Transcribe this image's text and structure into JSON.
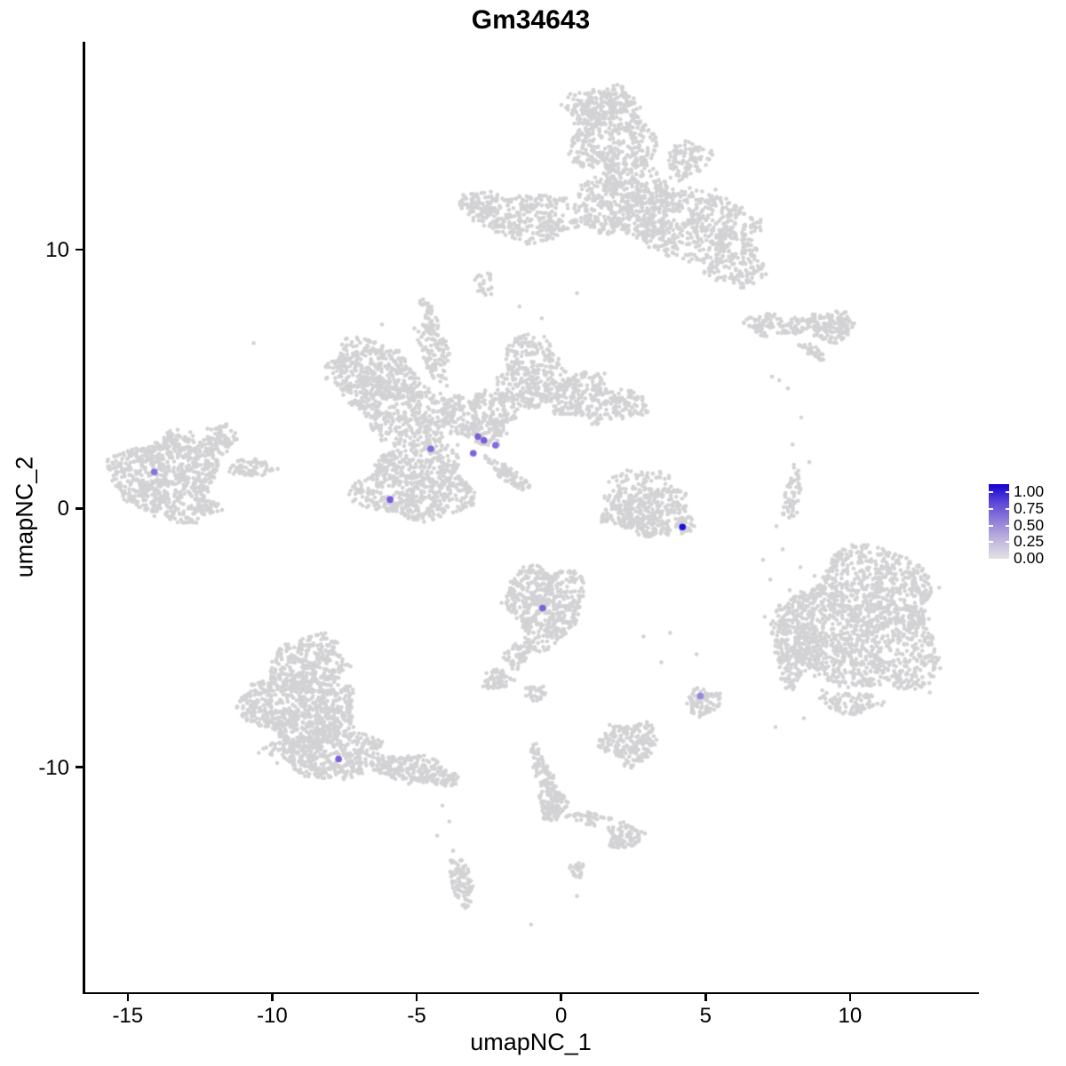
{
  "title": "Gm34643",
  "axes": {
    "x": {
      "label": "umapNC_1",
      "ticks": [
        -15,
        -10,
        -5,
        0,
        5,
        10
      ]
    },
    "y": {
      "label": "umapNC_2",
      "ticks": [
        10,
        0,
        -10
      ]
    }
  },
  "chart_data": {
    "type": "scatter",
    "title": "Gm34643",
    "xlabel": "umapNC_1",
    "ylabel": "umapNC_2",
    "xlim": [
      -16.5,
      14.4
    ],
    "ylim": [
      -18.7,
      18.0
    ],
    "grid": false,
    "point_color": "#D3D3D5",
    "point_radius": 2.3,
    "highlight_radius": 3.8,
    "colorbar": {
      "position": "right",
      "breaks": [
        1.0,
        0.75,
        0.5,
        0.25,
        0.0
      ],
      "labels": [
        "1.00",
        "0.75",
        "0.50",
        "0.25",
        "0.00"
      ],
      "high": "#1302D1",
      "low": "#E2E2E2",
      "gradient": [
        "#1302D1",
        "#5D48D8",
        "#9280DA",
        "#C0B6DE",
        "#E2E2E2"
      ]
    },
    "clusters": [
      {
        "id": "top-stalk-upper",
        "c": [
          1.78,
          14.5
        ],
        "r": [
          1.38,
          1.72
        ],
        "rot": 8,
        "n": 420
      },
      {
        "id": "top-stalk-cap",
        "c": [
          1.23,
          15.46
        ],
        "r": [
          1.17,
          0.76
        ],
        "rot": 0,
        "n": 140
      },
      {
        "id": "top-stalk-lower",
        "c": [
          2.27,
          11.92
        ],
        "r": [
          1.6,
          1.55
        ],
        "rot": 0,
        "n": 480
      },
      {
        "id": "top-band-left",
        "c": [
          -1.1,
          11.31
        ],
        "r": [
          1.99,
          0.93
        ],
        "rot": -5,
        "n": 330
      },
      {
        "id": "top-band-left-tip",
        "c": [
          -2.94,
          11.72
        ],
        "r": [
          0.67,
          0.48
        ],
        "rot": 0,
        "n": 70
      },
      {
        "id": "top-band-right",
        "c": [
          4.48,
          11.0
        ],
        "r": [
          2.21,
          1.37
        ],
        "rot": -12,
        "n": 520
      },
      {
        "id": "top-right-wing",
        "c": [
          6.07,
          9.42
        ],
        "r": [
          0.98,
          0.89
        ],
        "rot": 0,
        "n": 150
      },
      {
        "id": "top-right-spur",
        "c": [
          4.39,
          13.47
        ],
        "r": [
          0.8,
          0.69
        ],
        "rot": 40,
        "n": 110
      },
      {
        "id": "top-under-sparse",
        "c": [
          -2.67,
          8.73
        ],
        "r": [
          0.37,
          0.48
        ],
        "rot": 0,
        "n": 22
      },
      {
        "id": "righttop-arm",
        "c": [
          7.55,
          7.08
        ],
        "r": [
          1.23,
          0.41
        ],
        "rot": -3,
        "n": 110
      },
      {
        "id": "righttop-head",
        "c": [
          9.36,
          7.04
        ],
        "r": [
          0.8,
          0.62
        ],
        "rot": 0,
        "n": 140
      },
      {
        "id": "righttop-dash",
        "c": [
          8.71,
          6.05
        ],
        "r": [
          0.49,
          0.21
        ],
        "rot": -35,
        "n": 35
      },
      {
        "id": "butterfly-left-wing-top",
        "c": [
          -6.5,
          5.29
        ],
        "r": [
          1.69,
          1.1
        ],
        "rot": -18,
        "n": 380
      },
      {
        "id": "butterfly-left-wing",
        "c": [
          -5.52,
          3.75
        ],
        "r": [
          1.9,
          1.17
        ],
        "rot": -22,
        "n": 420
      },
      {
        "id": "butterfly-lower-body",
        "c": [
          -5.03,
          0.93
        ],
        "r": [
          1.99,
          1.44
        ],
        "rot": 0,
        "n": 650
      },
      {
        "id": "butterfly-center",
        "c": [
          -2.82,
          3.57
        ],
        "r": [
          1.29,
          1.03
        ],
        "rot": 0,
        "n": 300
      },
      {
        "id": "butterfly-stalk",
        "c": [
          -4.42,
          6.08
        ],
        "r": [
          0.49,
          1.2
        ],
        "rot": 15,
        "n": 110
      },
      {
        "id": "butterfly-strand",
        "c": [
          -4.57,
          7.35
        ],
        "r": [
          0.25,
          0.76
        ],
        "rot": 15,
        "n": 40
      },
      {
        "id": "butterfly-right-lobe",
        "c": [
          -1.04,
          5.22
        ],
        "r": [
          1.17,
          1.44
        ],
        "rot": 0,
        "n": 340
      },
      {
        "id": "butterfly-right-arm",
        "c": [
          0.74,
          4.26
        ],
        "r": [
          1.29,
          0.89
        ],
        "rot": -10,
        "n": 240
      },
      {
        "id": "butterfly-arm-tip",
        "c": [
          2.33,
          4.02
        ],
        "r": [
          0.61,
          0.55
        ],
        "rot": 0,
        "n": 70
      },
      {
        "id": "butterfly-tail",
        "c": [
          -1.84,
          1.31
        ],
        "r": [
          0.92,
          0.27
        ],
        "rot": -40,
        "n": 80
      },
      {
        "id": "fish-body",
        "c": [
          -13.65,
          1.24
        ],
        "r": [
          1.84,
          1.65
        ],
        "rot": 0,
        "n": 750
      },
      {
        "id": "fish-fin",
        "c": [
          -11.81,
          2.68
        ],
        "r": [
          0.61,
          0.55
        ],
        "rot": 45,
        "n": 80
      },
      {
        "id": "fish-tail",
        "c": [
          -10.74,
          1.55
        ],
        "r": [
          0.8,
          0.34
        ],
        "rot": 0,
        "n": 70
      },
      {
        "id": "fish-wisp",
        "c": [
          -12.27,
          0.03
        ],
        "r": [
          0.49,
          0.31
        ],
        "rot": 0,
        "n": 35
      },
      {
        "id": "midright-main",
        "c": [
          3.16,
          -0.17
        ],
        "r": [
          1.47,
          0.96
        ],
        "rot": 0,
        "n": 380
      },
      {
        "id": "midright-top-sparse",
        "c": [
          2.79,
          1.1
        ],
        "r": [
          1.1,
          0.55
        ],
        "rot": 0,
        "n": 55
      },
      {
        "id": "midright-left-bit",
        "c": [
          1.84,
          0.41
        ],
        "r": [
          0.31,
          0.34
        ],
        "rot": 0,
        "n": 22
      },
      {
        "id": "center-low-round",
        "c": [
          -0.55,
          -3.71
        ],
        "r": [
          1.29,
          1.58
        ],
        "rot": 0,
        "n": 520
      },
      {
        "id": "center-low-spur",
        "c": [
          -1.5,
          -5.67
        ],
        "r": [
          0.55,
          0.41
        ],
        "rot": 45,
        "n": 60
      },
      {
        "id": "center-low-blob",
        "c": [
          -2.21,
          -6.6
        ],
        "r": [
          0.49,
          0.41
        ],
        "rot": 0,
        "n": 60
      },
      {
        "id": "center-low-small",
        "c": [
          -0.86,
          -7.11
        ],
        "r": [
          0.37,
          0.31
        ],
        "rot": 0,
        "n": 30
      },
      {
        "id": "right-kidney",
        "c": [
          10.46,
          -4.4
        ],
        "r": [
          2.7,
          2.75
        ],
        "rot": 0,
        "n": 1500
      },
      {
        "id": "kidney-left-lobe",
        "c": [
          8.1,
          -5.36
        ],
        "r": [
          0.74,
          1.44
        ],
        "rot": 0,
        "n": 220
      },
      {
        "id": "kidney-bottom",
        "c": [
          10.0,
          -7.49
        ],
        "r": [
          1.1,
          0.41
        ],
        "rot": 0,
        "n": 90
      },
      {
        "id": "kidney-wisp",
        "c": [
          8.01,
          0.48
        ],
        "r": [
          0.28,
          1.13
        ],
        "rot": -8,
        "n": 60
      },
      {
        "id": "small-island",
        "c": [
          4.91,
          -7.49
        ],
        "r": [
          0.55,
          0.52
        ],
        "rot": 0,
        "n": 90
      },
      {
        "id": "lower-mid-island",
        "c": [
          2.36,
          -9.07
        ],
        "r": [
          0.98,
          0.82
        ],
        "rot": 0,
        "n": 190
      },
      {
        "id": "bottomleft-top",
        "c": [
          -8.68,
          -5.91
        ],
        "r": [
          1.35,
          0.96
        ],
        "rot": 0,
        "n": 280
      },
      {
        "id": "bottomleft-main",
        "c": [
          -9.02,
          -7.77
        ],
        "r": [
          2.02,
          1.37
        ],
        "rot": -8,
        "n": 750
      },
      {
        "id": "bottomleft-lower",
        "c": [
          -8.1,
          -9.48
        ],
        "r": [
          1.84,
          0.96
        ],
        "rot": 0,
        "n": 420
      },
      {
        "id": "bottomleft-tail",
        "c": [
          -5.34,
          -10.03
        ],
        "r": [
          1.29,
          0.55
        ],
        "rot": -8,
        "n": 200
      },
      {
        "id": "bottomleft-tail-tip",
        "c": [
          -3.99,
          -10.45
        ],
        "r": [
          0.49,
          0.31
        ],
        "rot": 0,
        "n": 50
      },
      {
        "id": "seahorse-strand",
        "c": [
          -0.64,
          -10.1
        ],
        "r": [
          1.0,
          0.28
        ],
        "rot": -70,
        "n": 80
      },
      {
        "id": "seahorse-body",
        "c": [
          -0.31,
          -11.44
        ],
        "r": [
          0.46,
          0.62
        ],
        "rot": 0,
        "n": 110
      },
      {
        "id": "seahorse-arm",
        "c": [
          0.98,
          -11.99
        ],
        "r": [
          0.8,
          0.24
        ],
        "rot": -10,
        "n": 45
      },
      {
        "id": "seahorse-head",
        "c": [
          2.21,
          -12.65
        ],
        "r": [
          0.58,
          0.48
        ],
        "rot": 0,
        "n": 90
      },
      {
        "id": "seahorse-drop",
        "c": [
          0.55,
          -13.99
        ],
        "r": [
          0.25,
          0.34
        ],
        "rot": 0,
        "n": 25
      },
      {
        "id": "bottom-strip",
        "c": [
          -3.47,
          -14.4
        ],
        "r": [
          0.37,
          0.93
        ],
        "rot": 12,
        "n": 90
      }
    ],
    "singles": [
      [
        -10.64,
        6.39
      ],
      [
        7.55,
        4.95
      ],
      [
        7.85,
        4.64
      ],
      [
        7.3,
        5.09
      ],
      [
        7.45,
        -0.69
      ],
      [
        7.67,
        -1.58
      ],
      [
        8.28,
        -2.27
      ],
      [
        7.24,
        -2.75
      ],
      [
        7.91,
        -3.16
      ],
      [
        8.77,
        -2.61
      ],
      [
        6.99,
        -1.99
      ],
      [
        -4.11,
        -11.48
      ],
      [
        -3.87,
        -12.1
      ],
      [
        -4.29,
        -12.65
      ],
      [
        -3.74,
        -13.23
      ],
      [
        -2.82,
        8.66
      ],
      [
        -2.42,
        8.28
      ],
      [
        -1.44,
        7.8
      ],
      [
        -0.67,
        7.35
      ],
      [
        0.55,
        8.32
      ],
      [
        7.42,
        -8.45
      ],
      [
        8.4,
        -8.11
      ],
      [
        -1.04,
        -16.08
      ],
      [
        0.55,
        -14.98
      ],
      [
        4.69,
        -5.64
      ],
      [
        3.77,
        -4.81
      ],
      [
        2.85,
        -4.95
      ],
      [
        3.47,
        -5.95
      ],
      [
        8.31,
        3.51
      ],
      [
        8.01,
        2.47
      ],
      [
        8.59,
        1.79
      ],
      [
        -6.2,
        7.11
      ]
    ],
    "highlighted_cells": [
      {
        "x": -14.08,
        "y": 1.41,
        "value": 0.5,
        "color": "#8673DE"
      },
      {
        "x": -5.92,
        "y": 0.34,
        "value": 0.6,
        "color": "#7A5BE0"
      },
      {
        "x": -4.51,
        "y": 2.3,
        "value": 0.5,
        "color": "#8569DE"
      },
      {
        "x": -3.04,
        "y": 2.13,
        "value": 0.55,
        "color": "#7F63DC"
      },
      {
        "x": -2.88,
        "y": 2.77,
        "value": 0.55,
        "color": "#7C5FDB"
      },
      {
        "x": -2.67,
        "y": 2.63,
        "value": 0.55,
        "color": "#7C5FDB"
      },
      {
        "x": -2.27,
        "y": 2.44,
        "value": 0.5,
        "color": "#8568DF"
      },
      {
        "x": -0.64,
        "y": -3.85,
        "value": 0.55,
        "color": "#7E61DC"
      },
      {
        "x": 4.2,
        "y": -0.72,
        "value": 1.0,
        "color": "#1B10D8"
      },
      {
        "x": 4.82,
        "y": -7.25,
        "value": 0.4,
        "color": "#9587E2"
      },
      {
        "x": -7.7,
        "y": -9.69,
        "value": 0.55,
        "color": "#7D60DC"
      }
    ]
  }
}
